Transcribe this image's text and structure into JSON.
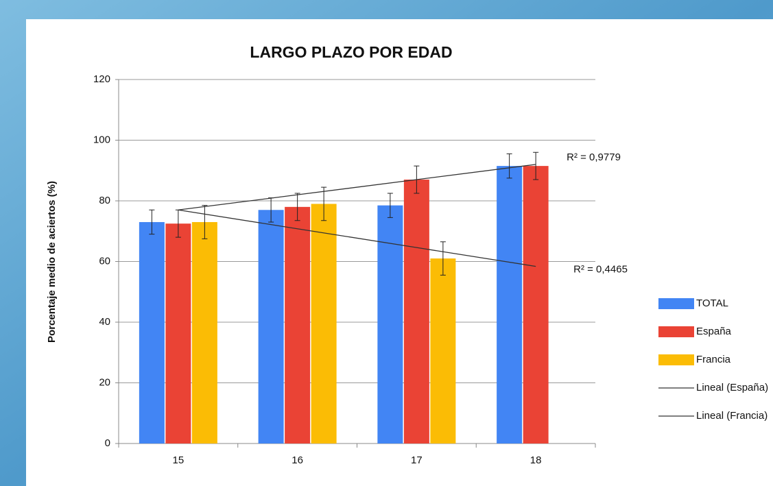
{
  "chart_data": {
    "type": "bar",
    "title": "LARGO PLAZO POR EDAD",
    "y_label": "Porcentaje medio de aciertos (%)",
    "categories": [
      "15",
      "16",
      "17",
      "18"
    ],
    "series": [
      {
        "name": "TOTAL",
        "color": "#4285f4",
        "values": [
          73,
          77,
          78.5,
          91.5
        ],
        "errors": [
          4,
          4,
          4,
          4
        ]
      },
      {
        "name": "España",
        "color": "#ea4335",
        "values": [
          72.5,
          78,
          87,
          91.5
        ],
        "errors": [
          4.5,
          4.5,
          4.5,
          4.5
        ]
      },
      {
        "name": "Francia",
        "color": "#fbbc05",
        "values": [
          73,
          79,
          61,
          null
        ],
        "errors": [
          5.5,
          5.5,
          5.5,
          null
        ]
      }
    ],
    "trendlines": [
      {
        "name": "Lineal (España)",
        "color": "#333333",
        "values": [
          77,
          82,
          87,
          92
        ],
        "r2_label": "R² = 0,9779"
      },
      {
        "name": "Lineal (Francia)",
        "color": "#333333",
        "values": [
          77,
          70.8,
          64.6,
          58.4
        ],
        "r2_label": "R² = 0,4465"
      }
    ],
    "ylim": [
      0,
      120
    ],
    "yticks": [
      0,
      20,
      40,
      60,
      80,
      100,
      120
    ],
    "grid": true,
    "legend": "right"
  }
}
